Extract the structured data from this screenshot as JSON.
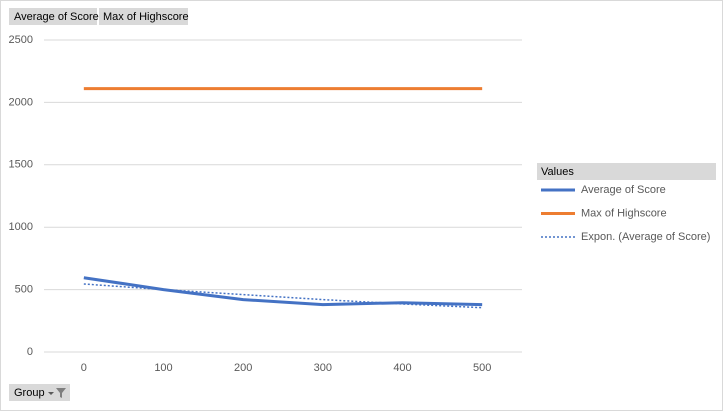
{
  "chart_data": {
    "type": "line",
    "field_buttons": [
      "Average of Score",
      "Max of Highscore"
    ],
    "axis_field_button": "Group",
    "legend_title": "Values",
    "legend_position": "right",
    "categories": [
      "0",
      "100",
      "200",
      "300",
      "400",
      "500"
    ],
    "series": [
      {
        "name": "Average of Score",
        "color": "#4472c4",
        "style": "solid",
        "values": [
          595,
          500,
          420,
          380,
          395,
          380
        ]
      },
      {
        "name": "Max of Highscore",
        "color": "#ed7d31",
        "style": "solid",
        "values": [
          2110,
          2110,
          2110,
          2110,
          2110,
          2110
        ]
      },
      {
        "name": "Expon. (Average of Score)",
        "color": "#4472c4",
        "style": "dotted",
        "values": [
          545,
          500,
          460,
          420,
          385,
          355
        ]
      }
    ],
    "ylim": [
      0,
      2500
    ],
    "yticks": [
      0,
      500,
      1000,
      1500,
      2000,
      2500
    ],
    "grid": true
  }
}
